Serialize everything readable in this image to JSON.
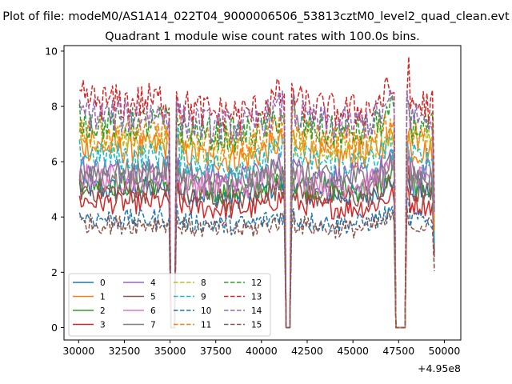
{
  "chart_data": {
    "type": "line",
    "suptitle": "Plot of file: modeM0/AS1A14_022T04_9000006506_53813cztM0_level2_quad_clean.evt",
    "title": "Quadrant 1 module wise count rates with 100.0s bins.",
    "xlabel": "",
    "ylabel": "",
    "xlim": [
      495029200,
      495050900
    ],
    "ylim": [
      -0.45,
      10.2
    ],
    "x_ticks": [
      30000,
      32500,
      35000,
      37500,
      40000,
      42500,
      45000,
      47500,
      50000
    ],
    "x_tick_labels": [
      "30000",
      "32500",
      "35000",
      "37500",
      "40000",
      "42500",
      "45000",
      "47500",
      "50000"
    ],
    "x_offset_label": "+4.95e8",
    "y_ticks": [
      0,
      2,
      4,
      6,
      8,
      10
    ],
    "y_tick_labels": [
      "0",
      "2",
      "4",
      "6",
      "8",
      "10"
    ],
    "x_start": 495030050,
    "x_end": 495049450,
    "bin": 100,
    "gaps": [
      [
        495035020,
        495035260
      ],
      [
        495041280,
        495041640
      ],
      [
        495047320,
        495047900
      ]
    ],
    "legend_position": "lower-left",
    "legend_ncol": 4,
    "series": [
      {
        "name": "0",
        "color": "#1f77b4",
        "dash": "solid",
        "level": 5.1
      },
      {
        "name": "1",
        "color": "#ff7f0e",
        "dash": "solid",
        "level": 6.6
      },
      {
        "name": "2",
        "color": "#2ca02c",
        "dash": "solid",
        "level": 5.3
      },
      {
        "name": "3",
        "color": "#d62728",
        "dash": "solid",
        "level": 4.6
      },
      {
        "name": "4",
        "color": "#9467bd",
        "dash": "solid",
        "level": 5.8
      },
      {
        "name": "5",
        "color": "#8c564b",
        "dash": "solid",
        "level": 5.0
      },
      {
        "name": "6",
        "color": "#e377c2",
        "dash": "solid",
        "level": 5.5
      },
      {
        "name": "7",
        "color": "#7f7f7f",
        "dash": "solid",
        "level": 5.7
      },
      {
        "name": "8",
        "color": "#bcbd22",
        "dash": "dashed",
        "level": 6.9
      },
      {
        "name": "9",
        "color": "#17becf",
        "dash": "dashed",
        "level": 6.3
      },
      {
        "name": "10",
        "color": "#1f77b4",
        "dash": "dashed",
        "level": 4.0
      },
      {
        "name": "11",
        "color": "#ff7f0e",
        "dash": "dashed",
        "level": 7.2
      },
      {
        "name": "12",
        "color": "#2ca02c",
        "dash": "dashed",
        "level": 7.5
      },
      {
        "name": "13",
        "color": "#d62728",
        "dash": "dashed",
        "level": 8.3
      },
      {
        "name": "14",
        "color": "#9467bd",
        "dash": "dashed",
        "level": 7.8
      },
      {
        "name": "15",
        "color": "#8c564b",
        "dash": "dashed",
        "level": 3.8
      }
    ]
  }
}
